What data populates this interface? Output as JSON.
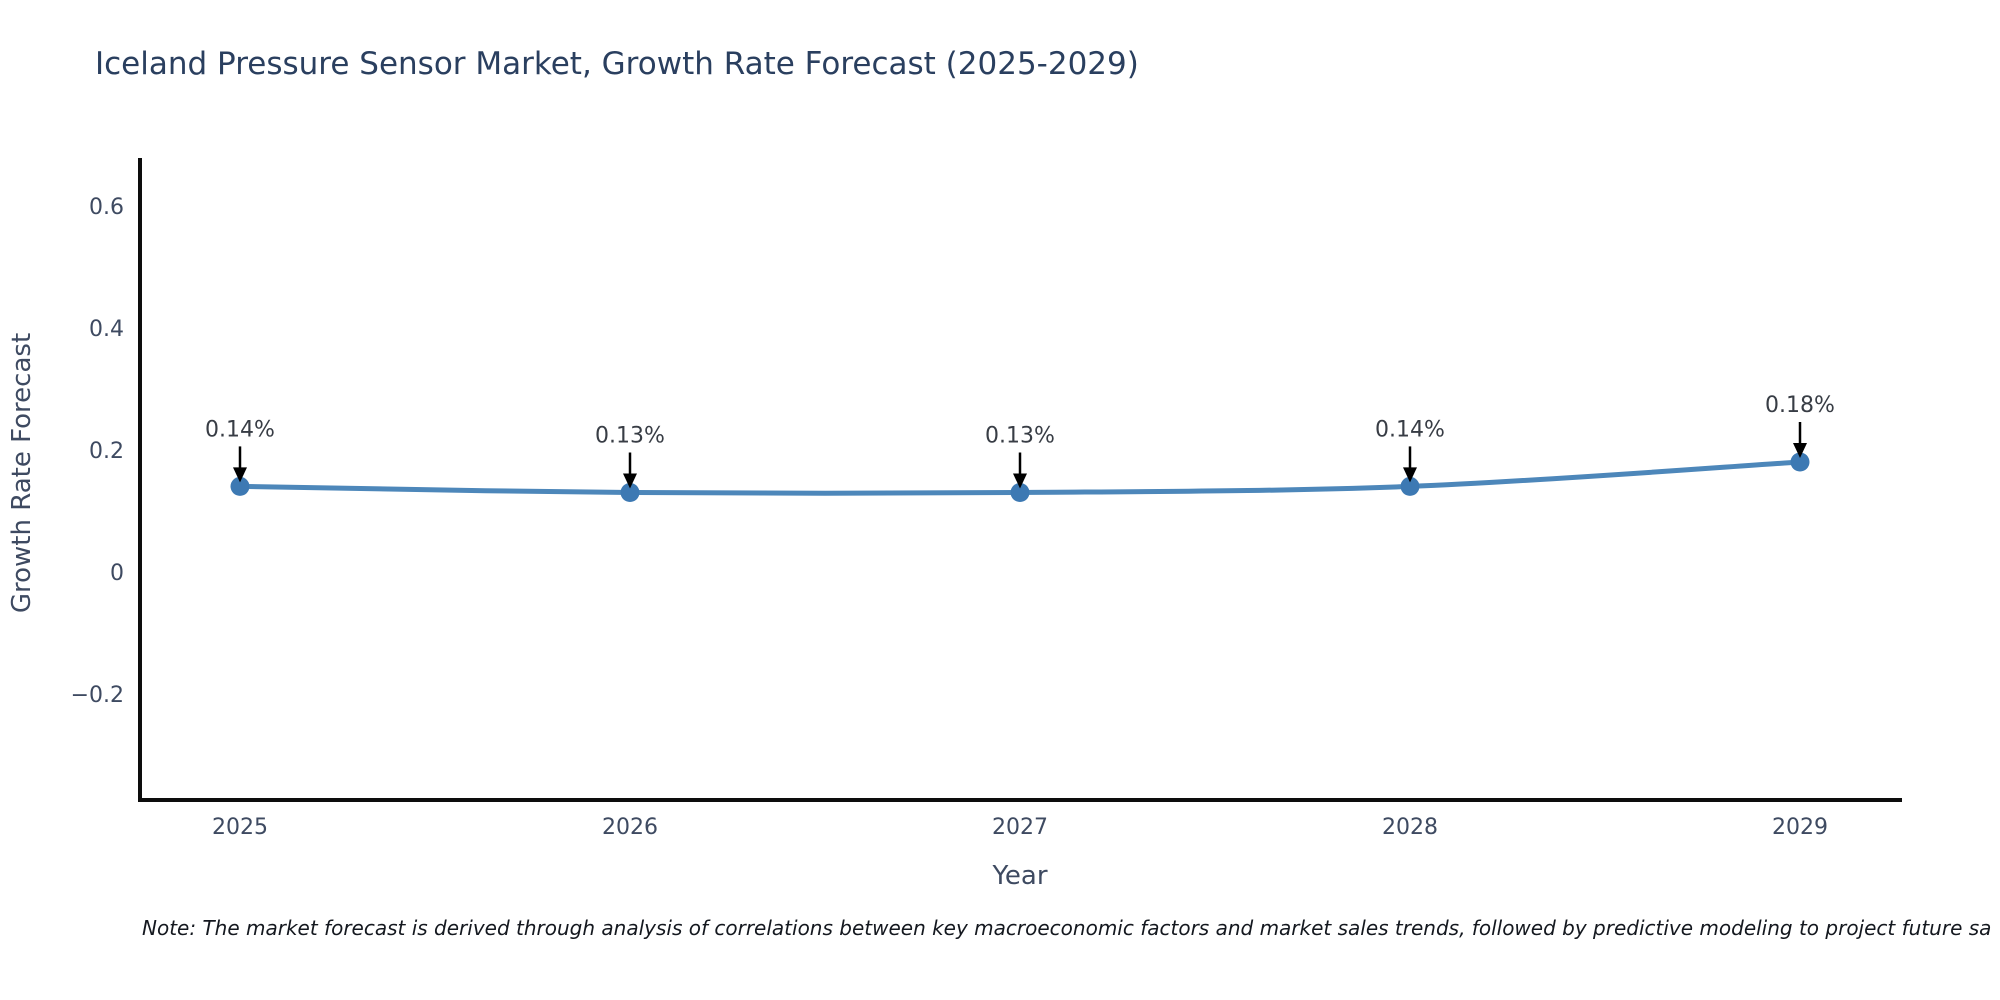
{
  "title": "Iceland Pressure Sensor Market, Growth Rate Forecast (2025-2029)",
  "note": "Note: The market forecast is derived through analysis of correlations between key macroeconomic factors and market sales trends, followed by predictive modeling to project future sa",
  "colors": {
    "title": "#2a3f5f",
    "axis_text": "#3e4a61",
    "annotation_text": "#383d45",
    "axis_line": "#0d0d0d",
    "line": "#4d87ba",
    "marker": "#3d79b3",
    "arrow": "#000000",
    "note_text": "#14181f",
    "background": "#ffffff"
  },
  "chart_data": {
    "type": "line",
    "title": "Iceland Pressure Sensor Market, Growth Rate Forecast (2025-2029)",
    "x": [
      "2025",
      "2026",
      "2027",
      "2028",
      "2029"
    ],
    "series": [
      {
        "name": "Growth Rate Forecast",
        "values": [
          0.14,
          0.13,
          0.13,
          0.14,
          0.18
        ],
        "point_labels": [
          "0.14%",
          "0.13%",
          "0.13%",
          "0.14%",
          "0.18%"
        ]
      }
    ],
    "xlabel": "Year",
    "ylabel": "Growth Rate Forecast",
    "yticks": [
      0.6,
      0.4,
      0.2,
      0,
      -0.2
    ],
    "ylim": [
      -0.374,
      0.675
    ],
    "grid": false,
    "legend": "none",
    "markers": true,
    "annotations": "value labels with downward arrows above each point"
  }
}
